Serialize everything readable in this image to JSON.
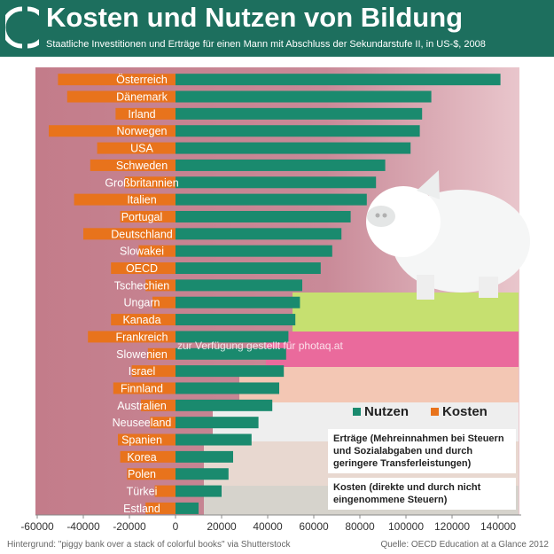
{
  "header": {
    "title": "Kosten und Nutzen von Bildung",
    "subtitle": "Staatliche Investitionen und Erträge für einen Mann mit Abschluss der Sekundarstufe II, in US-$, 2008"
  },
  "legend": {
    "nutzen": "Nutzen",
    "kosten": "Kosten"
  },
  "notes": {
    "ertraege": "Erträge (Mehreinnahmen bei Steuern und Sozialabgaben und durch geringere Transferleistungen)",
    "kosten": "Kosten (direkte und durch nicht eingenommene Steuern)"
  },
  "footer": {
    "source": "Quelle: OECD Education at a Glance 2012",
    "background_credit": "Hintergrund: \"piggy bank over a stack of colorful books\" via Shutterstock"
  },
  "watermark": "zur Verfügung gestellt für photaq.at",
  "colors": {
    "header": "#1d6f5e",
    "nutzen": "#1a8a6e",
    "kosten": "#e8731c"
  },
  "chart_data": {
    "type": "bar",
    "orientation": "horizontal",
    "categories": [
      "Österreich",
      "Dänemark",
      "Irland",
      "Norwegen",
      "USA",
      "Schweden",
      "Großbritannien",
      "Italien",
      "Portugal",
      "Deutschland",
      "Slowakei",
      "OECD",
      "Tschechien",
      "Ungarn",
      "Kanada",
      "Frankreich",
      "Slowenien",
      "Israel",
      "Finnland",
      "Australien",
      "Neuseeland",
      "Spanien",
      "Korea",
      "Polen",
      "Türkei",
      "Estland"
    ],
    "series": [
      {
        "name": "Nutzen",
        "values": [
          141000,
          111000,
          107000,
          106000,
          102000,
          91000,
          87000,
          83000,
          76000,
          72000,
          68000,
          63000,
          55000,
          54000,
          52000,
          49000,
          48000,
          47000,
          45000,
          42000,
          36000,
          33000,
          25000,
          23000,
          20000,
          10000
        ]
      },
      {
        "name": "Kosten",
        "values": [
          -51000,
          -47000,
          -26000,
          -55000,
          -34000,
          -37000,
          -22000,
          -44000,
          -24000,
          -40000,
          -16000,
          -28000,
          -13000,
          -10000,
          -28000,
          -38000,
          -12000,
          -19000,
          -27000,
          -15000,
          -11000,
          -25000,
          -24000,
          -21000,
          -9000,
          -13000
        ]
      }
    ],
    "xlim": [
      -60000,
      150000
    ],
    "xticks": [
      "-60000",
      "-40000",
      "-20000",
      "0",
      "20000",
      "40000",
      "60000",
      "80000",
      "100000",
      "120000",
      "140000"
    ],
    "xtick_values": [
      -60000,
      -40000,
      -20000,
      0,
      20000,
      40000,
      60000,
      80000,
      100000,
      120000,
      140000
    ],
    "xlabel": "",
    "ylabel": "",
    "grid": false,
    "legend_position": "bottom-right"
  }
}
